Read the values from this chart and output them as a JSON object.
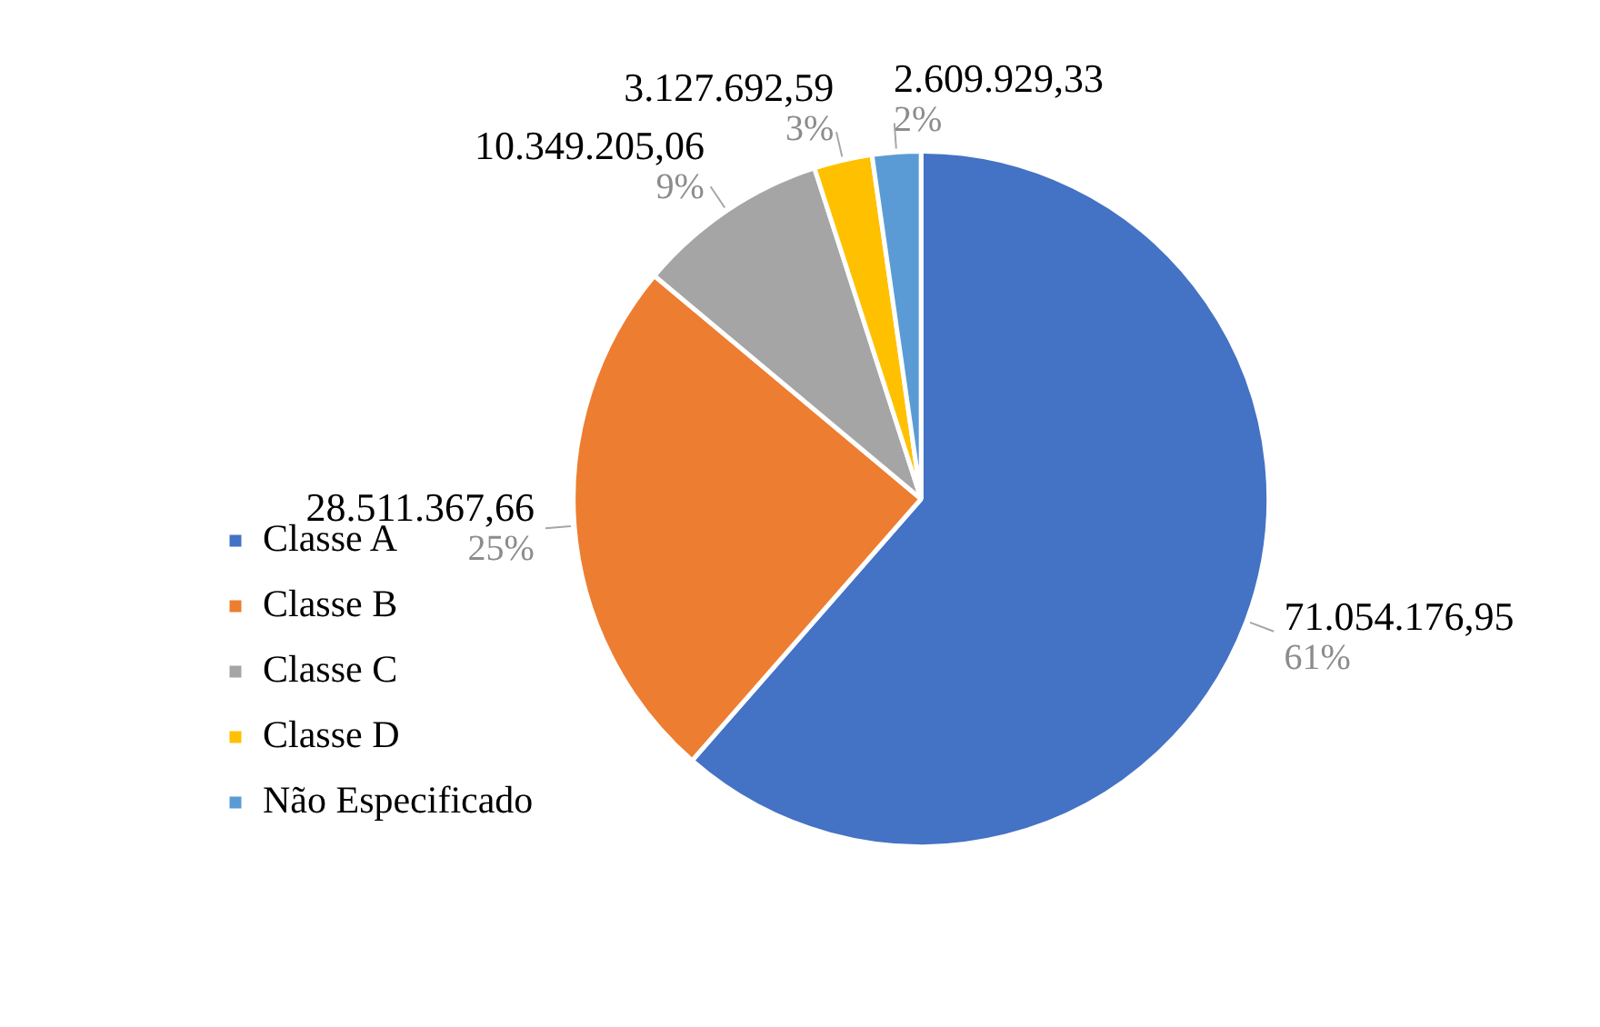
{
  "chart_data": {
    "type": "pie",
    "categories": [
      "Classe A",
      "Classe B",
      "Classe C",
      "Classe D",
      "Não Especificado"
    ],
    "values": [
      71054176.95,
      28511367.66,
      10349205.06,
      3127692.59,
      2609929.33
    ],
    "colors": [
      "#4472c4",
      "#ed7d31",
      "#a5a5a5",
      "#ffc000",
      "#5b9bd5"
    ],
    "value_labels": [
      "71.054.176,95\n61%",
      "28.511.367,66\n25%",
      "10.349.205,06\n9%",
      "3.127.692,59\n3%",
      "2.609.929,33\n2%"
    ],
    "legend": "bottom left"
  }
}
